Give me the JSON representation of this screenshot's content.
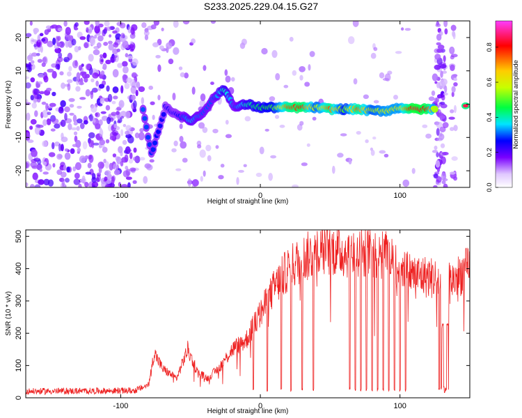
{
  "title": "S233.2025.229.04.15.G27",
  "chart_data": [
    {
      "type": "heatmap",
      "name": "spectrogram",
      "xlabel": "Height of straight line (km)",
      "ylabel": "Frequency (Hz)",
      "xlim": [
        -168,
        150
      ],
      "ylim": [
        -25,
        25
      ],
      "xticks": [
        -100,
        0,
        100
      ],
      "xtick_labels": [
        "-100",
        "0",
        "100"
      ],
      "yticks": [
        -20,
        -10,
        0,
        10,
        20
      ],
      "ytick_labels": [
        "-20",
        "-10",
        "0",
        "10",
        "20"
      ],
      "colorbar": {
        "label": "Normalized spectral amplitude",
        "range": [
          0,
          0.95
        ],
        "ticks": [
          0,
          0.2,
          0.4,
          0.6,
          0.8
        ],
        "tick_labels": [
          "0.0",
          "0.2",
          "0.4",
          "0.6",
          "0.8"
        ],
        "colors": [
          "#ffffff",
          "#c8a0ff",
          "#7a00ff",
          "#0000ff",
          "#00e5ff",
          "#00ff40",
          "#c8ff00",
          "#ffcc00",
          "#ff0000",
          "#ff3cff"
        ]
      },
      "signal_track": [
        {
          "x": -84,
          "f": -2,
          "a": 0.3
        },
        {
          "x": -78,
          "f": -15,
          "a": 0.28
        },
        {
          "x": -68,
          "f": -1,
          "a": 0.25
        },
        {
          "x": -60,
          "f": -3,
          "a": 0.25
        },
        {
          "x": -50,
          "f": -5,
          "a": 0.35
        },
        {
          "x": -42,
          "f": -3,
          "a": 0.3
        },
        {
          "x": -33,
          "f": 2,
          "a": 0.3
        },
        {
          "x": -26,
          "f": 4.5,
          "a": 0.4
        },
        {
          "x": -18,
          "f": -1,
          "a": 0.3
        },
        {
          "x": -10,
          "f": 0,
          "a": 0.4
        },
        {
          "x": 0,
          "f": -1,
          "a": 0.45
        },
        {
          "x": 10,
          "f": -1,
          "a": 0.5
        },
        {
          "x": 20,
          "f": -1,
          "a": 0.75
        },
        {
          "x": 30,
          "f": -1,
          "a": 0.8
        },
        {
          "x": 40,
          "f": -1,
          "a": 0.55
        },
        {
          "x": 50,
          "f": -1.5,
          "a": 0.75
        },
        {
          "x": 60,
          "f": -1.5,
          "a": 0.5
        },
        {
          "x": 70,
          "f": -1.5,
          "a": 0.75
        },
        {
          "x": 80,
          "f": -2,
          "a": 0.55
        },
        {
          "x": 90,
          "f": -2,
          "a": 0.6
        },
        {
          "x": 100,
          "f": -1,
          "a": 0.6
        },
        {
          "x": 110,
          "f": -1.5,
          "a": 0.85
        },
        {
          "x": 120,
          "f": -1.5,
          "a": 0.8
        },
        {
          "x": 125,
          "f": -1.5,
          "a": 0.55
        },
        {
          "x": 147,
          "f": -0.5,
          "a": 0.85
        }
      ]
    },
    {
      "type": "line",
      "name": "snr",
      "xlabel": "Height of straight line (km)",
      "ylabel": "SNR (10 * v/v)",
      "xlim": [
        -168,
        150
      ],
      "ylim": [
        0,
        520
      ],
      "xticks": [
        -100,
        0,
        100
      ],
      "xtick_labels": [
        "-100",
        "0",
        "100"
      ],
      "yticks": [
        0,
        100,
        200,
        300,
        400,
        500
      ],
      "ytick_labels": [
        "0",
        "100",
        "200",
        "300",
        "400",
        "500"
      ],
      "color": "#ee2020",
      "envelope": {
        "x": [
          -168,
          -90,
          -80,
          -76,
          -70,
          -60,
          -52,
          -45,
          -38,
          -30,
          -20,
          -10,
          0,
          10,
          20,
          30,
          40,
          50,
          60,
          70,
          80,
          90,
          95,
          100,
          110,
          120,
          125,
          130,
          135,
          140,
          145,
          150
        ],
        "y": [
          20,
          22,
          40,
          140,
          90,
          60,
          150,
          80,
          60,
          90,
          150,
          180,
          260,
          340,
          400,
          430,
          450,
          460,
          450,
          450,
          445,
          440,
          420,
          400,
          380,
          375,
          370,
          360,
          360,
          370,
          390,
          400
        ]
      },
      "dropouts_x": [
        -5,
        5,
        15,
        22,
        30,
        38,
        64,
        68,
        72,
        76,
        80,
        84,
        88,
        92,
        96,
        100,
        104,
        128,
        131,
        134
      ]
    }
  ]
}
